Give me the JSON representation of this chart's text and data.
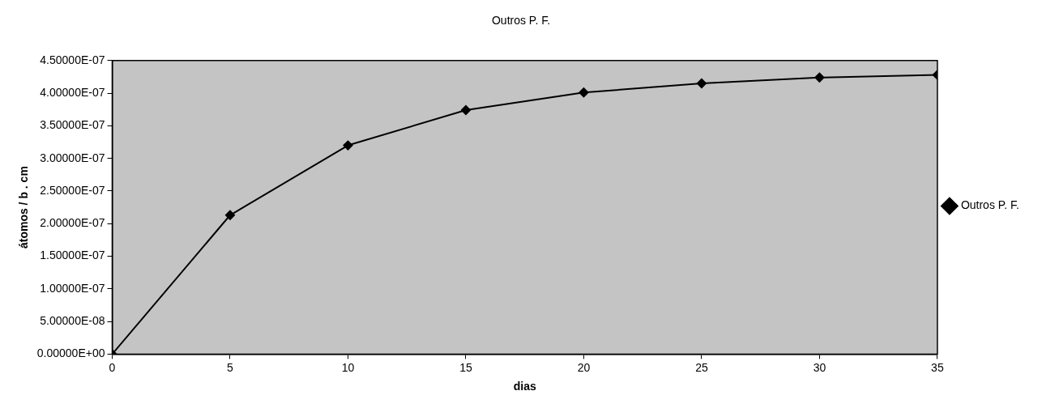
{
  "chart_data": {
    "type": "line",
    "title": "Outros P. F.",
    "xlabel": "dias",
    "ylabel": "átomos / b . cm",
    "x": [
      0,
      5,
      10,
      15,
      20,
      25,
      30,
      35
    ],
    "series": [
      {
        "name": "Outros P. F.",
        "color": "#000000",
        "values": [
          0,
          2.13e-07,
          3.2e-07,
          3.74e-07,
          4.01e-07,
          4.15e-07,
          4.24e-07,
          4.28e-07
        ]
      }
    ],
    "xlim": [
      0,
      35
    ],
    "xticks": [
      0,
      5,
      10,
      15,
      20,
      25,
      30,
      35
    ],
    "ylim": [
      0,
      4.5e-07
    ],
    "yticks": [
      {
        "value": 0,
        "label": "0.00000E+00"
      },
      {
        "value": 5e-08,
        "label": "5.00000E-08"
      },
      {
        "value": 1e-07,
        "label": "1.00000E-07"
      },
      {
        "value": 1.5e-07,
        "label": "1.50000E-07"
      },
      {
        "value": 2e-07,
        "label": "2.00000E-07"
      },
      {
        "value": 2.5e-07,
        "label": "2.50000E-07"
      },
      {
        "value": 3e-07,
        "label": "3.00000E-07"
      },
      {
        "value": 3.5e-07,
        "label": "3.50000E-07"
      },
      {
        "value": 4e-07,
        "label": "4.00000E-07"
      },
      {
        "value": 4.5e-07,
        "label": "4.50000E-07"
      }
    ],
    "grid": false,
    "legend": "right",
    "marker": "diamond",
    "line_style": "solid"
  }
}
